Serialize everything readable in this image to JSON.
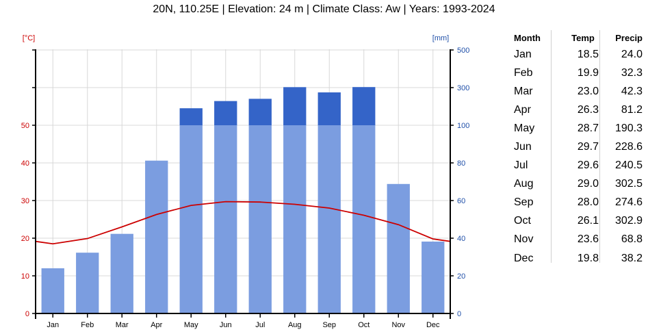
{
  "title": "20N, 110.25E | Elevation: 24 m | Climate Class: Aw | Years: 1993-2024",
  "chart_data": {
    "type": "bar",
    "categories": [
      "Jan",
      "Feb",
      "Mar",
      "Apr",
      "May",
      "Jun",
      "Jul",
      "Aug",
      "Sep",
      "Oct",
      "Nov",
      "Dec"
    ],
    "left_axis": {
      "unit": "[°C]",
      "ticks": [
        0,
        10,
        20,
        30,
        40,
        50
      ],
      "color": "#cc0000"
    },
    "right_axis": {
      "unit": "[mm]",
      "ticks": [
        0,
        20,
        40,
        60,
        80,
        100,
        300,
        500
      ],
      "color": "#1f4fa8"
    },
    "series": [
      {
        "name": "Temp",
        "type": "line",
        "color": "#cc0000",
        "values": [
          18.5,
          19.9,
          23.0,
          26.3,
          28.7,
          29.7,
          29.6,
          29.0,
          28.0,
          26.1,
          23.6,
          19.8
        ]
      },
      {
        "name": "Precip",
        "type": "bar",
        "color": "#7b9de0",
        "excess_color": "#3464c8",
        "values": [
          24.0,
          32.3,
          42.3,
          81.2,
          190.3,
          228.6,
          240.5,
          302.5,
          274.6,
          302.9,
          68.8,
          38.2
        ]
      }
    ],
    "grid": true
  },
  "table": {
    "headers": [
      "Month",
      "Temp",
      "Precip"
    ],
    "rows": [
      [
        "Jan",
        "18.5",
        "24.0"
      ],
      [
        "Feb",
        "19.9",
        "32.3"
      ],
      [
        "Mar",
        "23.0",
        "42.3"
      ],
      [
        "Apr",
        "26.3",
        "81.2"
      ],
      [
        "May",
        "28.7",
        "190.3"
      ],
      [
        "Jun",
        "29.7",
        "228.6"
      ],
      [
        "Jul",
        "29.6",
        "240.5"
      ],
      [
        "Aug",
        "29.0",
        "302.5"
      ],
      [
        "Sep",
        "28.0",
        "274.6"
      ],
      [
        "Oct",
        "26.1",
        "302.9"
      ],
      [
        "Nov",
        "23.6",
        "68.8"
      ],
      [
        "Dec",
        "19.8",
        "38.2"
      ]
    ]
  }
}
